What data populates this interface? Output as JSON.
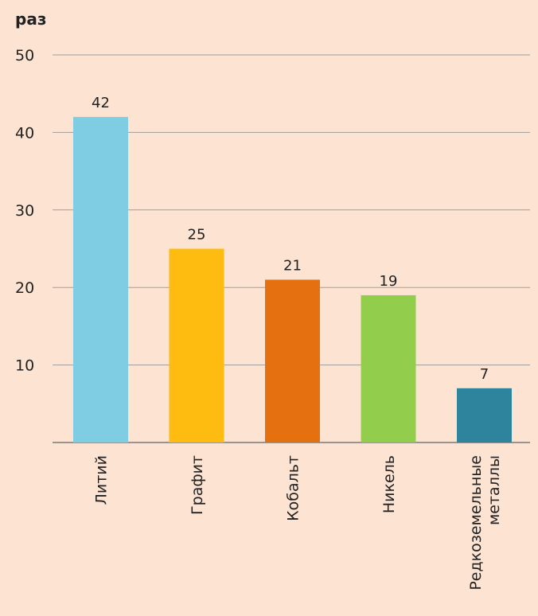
{
  "chart_data": {
    "type": "bar",
    "y_unit_label": "раз",
    "categories": [
      "Литий",
      "Графит",
      "Кобальт",
      "Никель",
      "Редкоземельные металлы"
    ],
    "category_lines": [
      [
        "Литий"
      ],
      [
        "Графит"
      ],
      [
        "Кобальт"
      ],
      [
        "Никель"
      ],
      [
        "Редкоземельные",
        "металлы"
      ]
    ],
    "values": [
      42,
      25,
      21,
      19,
      7
    ],
    "value_labels": [
      "42",
      "25",
      "21",
      "19",
      "7"
    ],
    "bar_colors": [
      "#7ECDE3",
      "#FDBC0F",
      "#E5700F",
      "#92CE4C",
      "#2E849C"
    ],
    "y_ticks": [
      10,
      20,
      30,
      40,
      50
    ],
    "y_tick_labels": [
      "10",
      "20",
      "30",
      "40",
      "50"
    ],
    "ylim": [
      0,
      50
    ],
    "grid": true,
    "gridline_color": "#9E9E9E",
    "background_color": "#FCE3D2"
  }
}
